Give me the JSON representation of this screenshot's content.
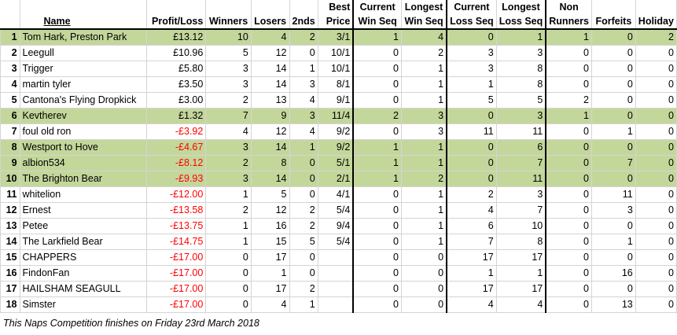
{
  "headers": {
    "name": "Name",
    "profit": "Profit/Loss",
    "winners": "Winners",
    "losers": "Losers",
    "seconds": "2nds",
    "best_price_top": "Best",
    "best_price_bottom": "Price",
    "cur_win_top": "Current",
    "cur_win_bottom": "Win Seq",
    "long_win_top": "Longest",
    "long_win_bottom": "Win Seq",
    "cur_loss_top": "Current",
    "cur_loss_bottom": "Loss Seq",
    "long_loss_top": "Longest",
    "long_loss_bottom": "Loss Seq",
    "non_top": "Non",
    "non_bottom": "Runners",
    "forfeits": "Forfeits",
    "holiday": "Holiday"
  },
  "rows": [
    {
      "rank": "1",
      "name": "Tom Hark, Preston Park",
      "profit": "£13.12",
      "winners": "10",
      "losers": "4",
      "seconds": "2",
      "best": "3/1",
      "cur_win": "1",
      "long_win": "4",
      "cur_loss": "0",
      "long_loss": "1",
      "non": "1",
      "forfeits": "0",
      "holiday": "2",
      "highlight": true,
      "negative": false
    },
    {
      "rank": "2",
      "name": "Leegull",
      "profit": "£10.96",
      "winners": "5",
      "losers": "12",
      "seconds": "0",
      "best": "10/1",
      "cur_win": "0",
      "long_win": "2",
      "cur_loss": "3",
      "long_loss": "3",
      "non": "0",
      "forfeits": "0",
      "holiday": "0",
      "highlight": false,
      "negative": false
    },
    {
      "rank": "3",
      "name": "Trigger",
      "profit": "£5.80",
      "winners": "3",
      "losers": "14",
      "seconds": "1",
      "best": "10/1",
      "cur_win": "0",
      "long_win": "1",
      "cur_loss": "3",
      "long_loss": "8",
      "non": "0",
      "forfeits": "0",
      "holiday": "0",
      "highlight": false,
      "negative": false
    },
    {
      "rank": "4",
      "name": "martin tyler",
      "profit": "£3.50",
      "winners": "3",
      "losers": "14",
      "seconds": "3",
      "best": "8/1",
      "cur_win": "0",
      "long_win": "1",
      "cur_loss": "1",
      "long_loss": "8",
      "non": "0",
      "forfeits": "0",
      "holiday": "0",
      "highlight": false,
      "negative": false
    },
    {
      "rank": "5",
      "name": "Cantona's Flying Dropkick",
      "profit": "£3.00",
      "winners": "2",
      "losers": "13",
      "seconds": "4",
      "best": "9/1",
      "cur_win": "0",
      "long_win": "1",
      "cur_loss": "5",
      "long_loss": "5",
      "non": "2",
      "forfeits": "0",
      "holiday": "0",
      "highlight": false,
      "negative": false
    },
    {
      "rank": "6",
      "name": "Kevtherev",
      "profit": "£1.32",
      "winners": "7",
      "losers": "9",
      "seconds": "3",
      "best": "11/4",
      "cur_win": "2",
      "long_win": "3",
      "cur_loss": "0",
      "long_loss": "3",
      "non": "1",
      "forfeits": "0",
      "holiday": "0",
      "highlight": true,
      "negative": false
    },
    {
      "rank": "7",
      "name": "foul old ron",
      "profit": "-£3.92",
      "winners": "4",
      "losers": "12",
      "seconds": "4",
      "best": "9/2",
      "cur_win": "0",
      "long_win": "3",
      "cur_loss": "11",
      "long_loss": "11",
      "non": "0",
      "forfeits": "1",
      "holiday": "0",
      "highlight": false,
      "negative": true
    },
    {
      "rank": "8",
      "name": "Westport to Hove",
      "profit": "-£4.67",
      "winners": "3",
      "losers": "14",
      "seconds": "1",
      "best": "9/2",
      "cur_win": "1",
      "long_win": "1",
      "cur_loss": "0",
      "long_loss": "6",
      "non": "0",
      "forfeits": "0",
      "holiday": "0",
      "highlight": true,
      "negative": true
    },
    {
      "rank": "9",
      "name": "albion534",
      "profit": "-£8.12",
      "winners": "2",
      "losers": "8",
      "seconds": "0",
      "best": "5/1",
      "cur_win": "1",
      "long_win": "1",
      "cur_loss": "0",
      "long_loss": "7",
      "non": "0",
      "forfeits": "7",
      "holiday": "0",
      "highlight": true,
      "negative": true
    },
    {
      "rank": "10",
      "name": "The Brighton Bear",
      "profit": "-£9.93",
      "winners": "3",
      "losers": "14",
      "seconds": "0",
      "best": "2/1",
      "cur_win": "1",
      "long_win": "2",
      "cur_loss": "0",
      "long_loss": "11",
      "non": "0",
      "forfeits": "0",
      "holiday": "0",
      "highlight": true,
      "negative": true
    },
    {
      "rank": "11",
      "name": "whitelion",
      "profit": "-£12.00",
      "winners": "1",
      "losers": "5",
      "seconds": "0",
      "best": "4/1",
      "cur_win": "0",
      "long_win": "1",
      "cur_loss": "2",
      "long_loss": "3",
      "non": "0",
      "forfeits": "11",
      "holiday": "0",
      "highlight": false,
      "negative": true
    },
    {
      "rank": "12",
      "name": "Ernest",
      "profit": "-£13.58",
      "winners": "2",
      "losers": "12",
      "seconds": "2",
      "best": "5/4",
      "cur_win": "0",
      "long_win": "1",
      "cur_loss": "4",
      "long_loss": "7",
      "non": "0",
      "forfeits": "3",
      "holiday": "0",
      "highlight": false,
      "negative": true
    },
    {
      "rank": "13",
      "name": "Petee",
      "profit": "-£13.75",
      "winners": "1",
      "losers": "16",
      "seconds": "2",
      "best": "9/4",
      "cur_win": "0",
      "long_win": "1",
      "cur_loss": "6",
      "long_loss": "10",
      "non": "0",
      "forfeits": "0",
      "holiday": "0",
      "highlight": false,
      "negative": true
    },
    {
      "rank": "14",
      "name": "The Larkfield Bear",
      "profit": "-£14.75",
      "winners": "1",
      "losers": "15",
      "seconds": "5",
      "best": "5/4",
      "cur_win": "0",
      "long_win": "1",
      "cur_loss": "7",
      "long_loss": "8",
      "non": "0",
      "forfeits": "1",
      "holiday": "0",
      "highlight": false,
      "negative": true
    },
    {
      "rank": "15",
      "name": "CHAPPERS",
      "profit": "-£17.00",
      "winners": "0",
      "losers": "17",
      "seconds": "0",
      "best": "",
      "cur_win": "0",
      "long_win": "0",
      "cur_loss": "17",
      "long_loss": "17",
      "non": "0",
      "forfeits": "0",
      "holiday": "0",
      "highlight": false,
      "negative": true
    },
    {
      "rank": "16",
      "name": "FindonFan",
      "profit": "-£17.00",
      "winners": "0",
      "losers": "1",
      "seconds": "0",
      "best": "",
      "cur_win": "0",
      "long_win": "0",
      "cur_loss": "1",
      "long_loss": "1",
      "non": "0",
      "forfeits": "16",
      "holiday": "0",
      "highlight": false,
      "negative": true
    },
    {
      "rank": "17",
      "name": "HAILSHAM SEAGULL",
      "profit": "-£17.00",
      "winners": "0",
      "losers": "17",
      "seconds": "2",
      "best": "",
      "cur_win": "0",
      "long_win": "0",
      "cur_loss": "17",
      "long_loss": "17",
      "non": "0",
      "forfeits": "0",
      "holiday": "0",
      "highlight": false,
      "negative": true
    },
    {
      "rank": "18",
      "name": "Simster",
      "profit": "-£17.00",
      "winners": "0",
      "losers": "4",
      "seconds": "1",
      "best": "",
      "cur_win": "0",
      "long_win": "0",
      "cur_loss": "4",
      "long_loss": "4",
      "non": "0",
      "forfeits": "13",
      "holiday": "0",
      "highlight": false,
      "negative": true
    }
  ],
  "footer": "This Naps Competition finishes on Friday 23rd March 2018",
  "colors": {
    "highlight": "#c4d79b",
    "negative": "#ff0000",
    "border": "#d4d4d4",
    "thick": "#000000"
  }
}
